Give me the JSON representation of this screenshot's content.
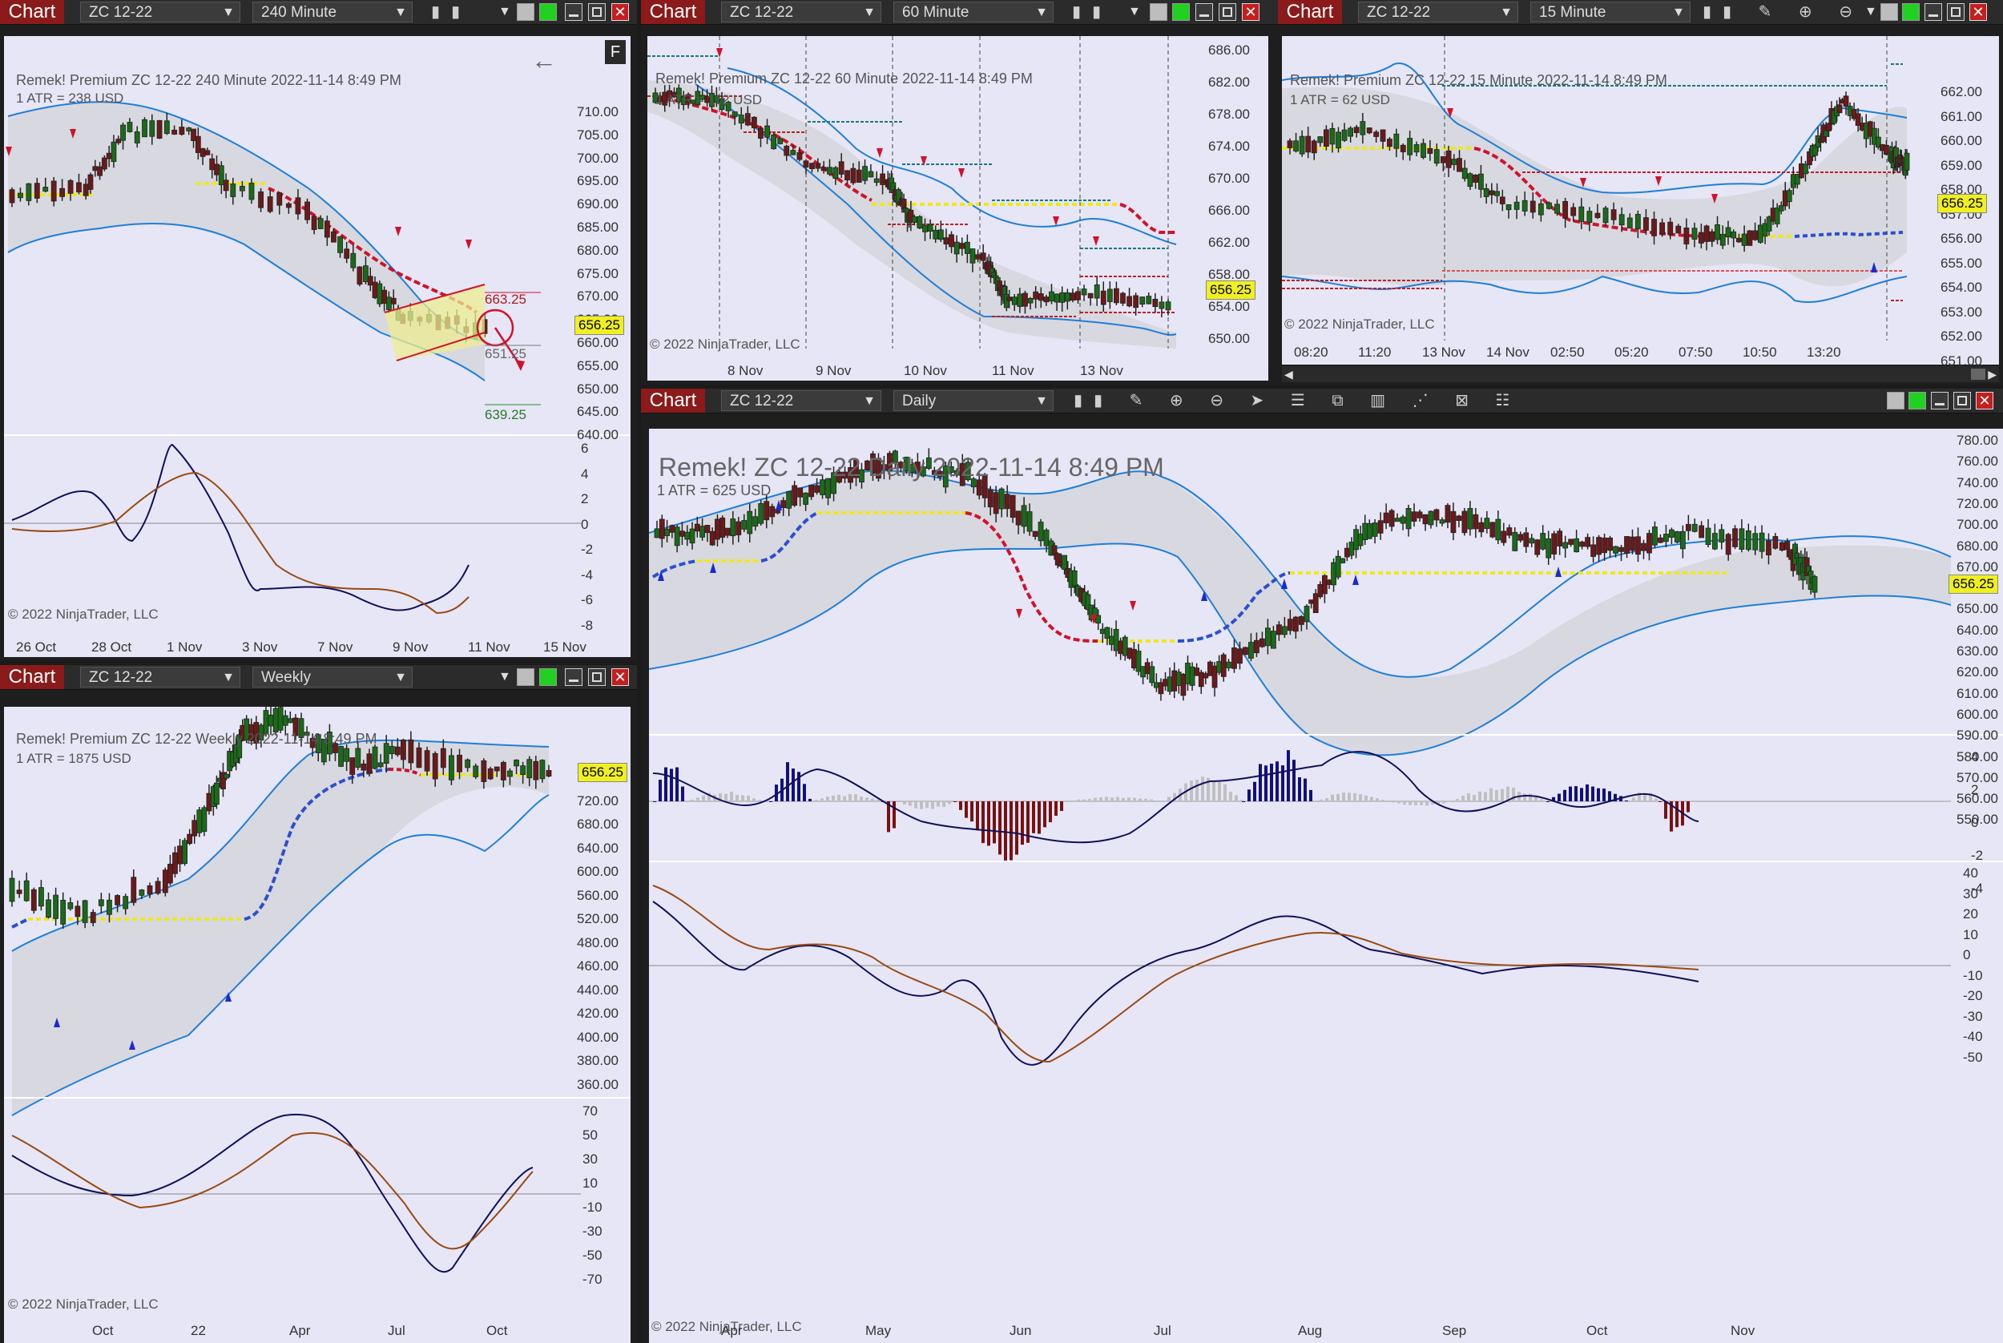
{
  "colors": {
    "bg": "#e6e6f6",
    "band": "#d8d8e0",
    "envelope": "#1e7fd8",
    "up": "#1a6a1a",
    "down": "#6a1a1a",
    "trail_down": "#d0122a",
    "trail_up": "#2a4fd0",
    "flat": "#f0e818",
    "osc_blue": "#10105a",
    "osc_brown": "#9a4a10",
    "price_badge": "#f0f020"
  },
  "icons": [
    "bar-style-icon",
    "draw-icon",
    "zoom-in-icon",
    "zoom-out-icon",
    "arrow-icon",
    "data-box-icon",
    "templates-icon",
    "indicators-icon",
    "strategies-icon",
    "properties-icon",
    "menu-icon"
  ],
  "charts": [
    {
      "id": "c240",
      "tab": "Chart",
      "instrument": "ZC 12-22",
      "period": "240 Minute",
      "title": "Remek!  Premium  ZC 12-22  240 Minute  2022-11-14 8:49 PM",
      "atr": "1 ATR = 238 USD",
      "copyright": "© 2022 NinjaTrader, LLC",
      "price_badge": "656.25",
      "f_button": "F",
      "y_labels": [
        "710.00",
        "705.00",
        "700.00",
        "695.00",
        "690.00",
        "685.00",
        "680.00",
        "675.00",
        "670.00",
        "665.00",
        "660.00",
        "655.00",
        "650.00",
        "645.00",
        "640.00"
      ],
      "annotations": [
        "663.25",
        "651.25",
        "639.25"
      ],
      "osc_labels": [
        "6",
        "4",
        "2",
        "0",
        "-2",
        "-4",
        "-6",
        "-8"
      ],
      "x_labels": [
        "26 Oct",
        "28 Oct",
        "1 Nov",
        "3 Nov",
        "7 Nov",
        "9 Nov",
        "11 Nov",
        "15 Nov"
      ]
    },
    {
      "id": "c60",
      "tab": "Chart",
      "instrument": "ZC 12-22",
      "period": "60 Minute",
      "title": "Remek!  Premium  ZC 12-22  60 Minute  2022-11-14 8:49 PM",
      "atr": "1 ATR = 112 USD",
      "copyright": "© 2022 NinjaTrader, LLC",
      "price_badge": "656.25",
      "y_labels": [
        "686.00",
        "682.00",
        "678.00",
        "674.00",
        "670.00",
        "666.00",
        "662.00",
        "658.00",
        "654.00",
        "650.00"
      ],
      "x_labels": [
        "8 Nov",
        "9 Nov",
        "10 Nov",
        "11 Nov",
        "13 Nov"
      ]
    },
    {
      "id": "c15",
      "tab": "Chart",
      "instrument": "ZC 12-22",
      "period": "15 Minute",
      "title": "Remek!  Premium  ZC 12-22  15 Minute  2022-11-14 8:49 PM",
      "atr": "1 ATR = 62 USD",
      "copyright": "© 2022 NinjaTrader, LLC",
      "price_badge": "656.25",
      "y_labels": [
        "662.00",
        "661.00",
        "660.00",
        "659.00",
        "658.00",
        "657.00",
        "656.00",
        "655.00",
        "654.00",
        "653.00",
        "652.00",
        "651.00"
      ],
      "x_labels": [
        "08:20",
        "11:20",
        "13 Nov",
        "14 Nov",
        "02:50",
        "05:20",
        "07:50",
        "10:50",
        "13:20"
      ]
    },
    {
      "id": "cW",
      "tab": "Chart",
      "instrument": "ZC 12-22",
      "period": "Weekly",
      "title": "Remek!  Premium  ZC 12-22  Weekly  2022-11-14 8:49 PM",
      "atr": "1 ATR = 1875 USD",
      "copyright": "© 2022 NinjaTrader, LLC",
      "price_badge": "656.25",
      "y_labels": [
        "760.00",
        "720.00",
        "680.00",
        "640.00",
        "600.00",
        "560.00",
        "520.00",
        "480.00",
        "460.00",
        "440.00",
        "420.00",
        "400.00",
        "380.00",
        "360.00"
      ],
      "osc_labels": [
        "70",
        "50",
        "30",
        "10",
        "-10",
        "-30",
        "-50",
        "-70"
      ],
      "x_labels": [
        "Oct",
        "22",
        "Apr",
        "Jul",
        "Oct"
      ]
    },
    {
      "id": "cD",
      "tab": "Chart",
      "instrument": "ZC 12-22",
      "period": "Daily",
      "title": "Remek!  ZC 12-22  Daily  2022-11-14 8:49 PM",
      "atr": "1 ATR = 625 USD",
      "copyright": "© 2022 NinjaTrader, LLC",
      "price_badge": "656.25",
      "y_labels": [
        "780.00",
        "760.00",
        "740.00",
        "720.00",
        "700.00",
        "680.00",
        "670.00",
        "660.00",
        "650.00",
        "640.00",
        "630.00",
        "620.00",
        "610.00",
        "600.00",
        "590.00",
        "580.00",
        "570.00",
        "560.00",
        "550.00"
      ],
      "hist_labels": [
        "4",
        "2",
        "0",
        "-2",
        "-4"
      ],
      "osc_labels": [
        "40",
        "30",
        "20",
        "10",
        "0",
        "-10",
        "-20",
        "-30",
        "-40",
        "-50"
      ],
      "x_labels": [
        "Apr",
        "May",
        "Jun",
        "Jul",
        "Aug",
        "Sep",
        "Oct",
        "Nov"
      ]
    }
  ]
}
